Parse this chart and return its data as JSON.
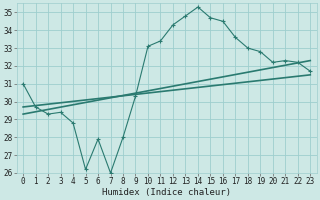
{
  "xlabel": "Humidex (Indice chaleur)",
  "ylabel": "",
  "background_color": "#cde8e5",
  "grid_color": "#9ecece",
  "line_color": "#2a7a70",
  "xlim": [
    -0.5,
    23.5
  ],
  "ylim": [
    26,
    35.5
  ],
  "yticks": [
    26,
    27,
    28,
    29,
    30,
    31,
    32,
    33,
    34,
    35
  ],
  "xticks": [
    0,
    1,
    2,
    3,
    4,
    5,
    6,
    7,
    8,
    9,
    10,
    11,
    12,
    13,
    14,
    15,
    16,
    17,
    18,
    19,
    20,
    21,
    22,
    23
  ],
  "series1_x": [
    0,
    1,
    2,
    3,
    4,
    5,
    6,
    7,
    8,
    9,
    10,
    11,
    12,
    13,
    14,
    15,
    16,
    17,
    18,
    19,
    20,
    21,
    22,
    23
  ],
  "series1_y": [
    31.0,
    29.7,
    29.3,
    29.4,
    28.8,
    26.2,
    27.9,
    26.0,
    28.0,
    30.3,
    33.1,
    33.4,
    34.3,
    34.8,
    35.3,
    34.7,
    34.5,
    33.6,
    33.0,
    32.8,
    32.2,
    32.3,
    32.2,
    31.7
  ],
  "series2_x": [
    0,
    23
  ],
  "series2_y": [
    29.3,
    32.3
  ],
  "series3_x": [
    0,
    23
  ],
  "series3_y": [
    29.7,
    31.5
  ]
}
